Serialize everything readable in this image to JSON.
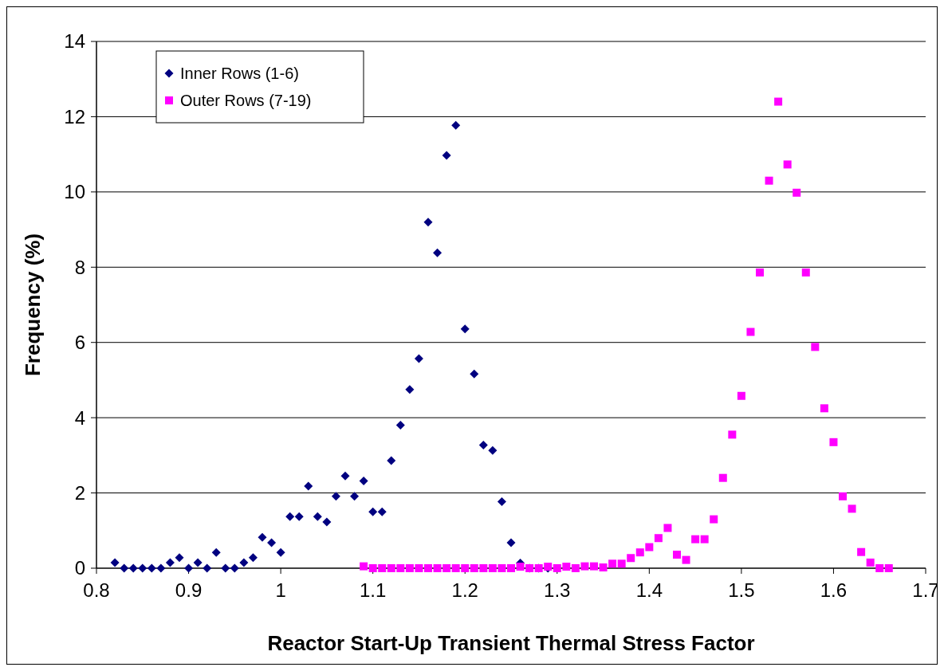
{
  "chart_data": {
    "type": "scatter",
    "xlabel": "Reactor Start-Up Transient Thermal Stress Factor",
    "ylabel": "Frequency (%)",
    "xlim": [
      0.8,
      1.7
    ],
    "xticks": [
      {
        "value": 0.8,
        "label": "0.8"
      },
      {
        "value": 0.9,
        "label": "0.9"
      },
      1,
      {
        "value": 1.1,
        "label": "1.1"
      },
      {
        "value": 1.2,
        "label": "1.2"
      },
      {
        "value": 1.3,
        "label": "1.3"
      },
      {
        "value": 1.4,
        "label": "1.4"
      },
      {
        "value": 1.5,
        "label": "1.5"
      },
      {
        "value": 1.6,
        "label": "1.6"
      },
      {
        "value": 1.7,
        "label": "1.7"
      }
    ],
    "ylim": [
      0,
      14
    ],
    "yticks": [
      0,
      2,
      4,
      6,
      8,
      10,
      12,
      14
    ],
    "grid": "y",
    "legend": "top left",
    "series": [
      {
        "name": "Inner Rows (1-6)",
        "color": "#000080",
        "marker": "diamond",
        "x": [
          0.82,
          0.83,
          0.84,
          0.85,
          0.86,
          0.87,
          0.88,
          0.89,
          0.9,
          0.91,
          0.92,
          0.93,
          0.94,
          0.95,
          0.96,
          0.97,
          0.98,
          0.99,
          1.0,
          1.01,
          1.02,
          1.03,
          1.04,
          1.05,
          1.06,
          1.07,
          1.08,
          1.09,
          1.1,
          1.11,
          1.12,
          1.13,
          1.14,
          1.15,
          1.16,
          1.17,
          1.18,
          1.19,
          1.2,
          1.21,
          1.22,
          1.23,
          1.24,
          1.25,
          1.26,
          1.27,
          1.28,
          1.29
        ],
        "values": [
          0.15,
          0,
          0,
          0,
          0,
          0,
          0.15,
          0.28,
          0,
          0.15,
          0,
          0.42,
          0,
          0,
          0.15,
          0.28,
          0.82,
          0.68,
          0.42,
          1.37,
          1.37,
          2.18,
          1.37,
          1.23,
          1.91,
          2.45,
          1.91,
          2.32,
          1.5,
          1.5,
          2.86,
          3.8,
          4.75,
          5.57,
          9.2,
          8.38,
          10.97,
          11.77,
          6.36,
          5.16,
          3.27,
          3.13,
          1.77,
          0.68,
          0.14,
          0,
          0,
          0
        ]
      },
      {
        "name": "Outer Rows (7-19)",
        "color": "#ff00ff",
        "marker": "square",
        "x": [
          1.09,
          1.1,
          1.11,
          1.12,
          1.13,
          1.14,
          1.15,
          1.16,
          1.17,
          1.18,
          1.19,
          1.2,
          1.21,
          1.22,
          1.23,
          1.24,
          1.25,
          1.26,
          1.27,
          1.28,
          1.29,
          1.3,
          1.31,
          1.32,
          1.33,
          1.34,
          1.35,
          1.36,
          1.37,
          1.38,
          1.39,
          1.4,
          1.41,
          1.42,
          1.43,
          1.44,
          1.45,
          1.46,
          1.47,
          1.48,
          1.49,
          1.5,
          1.51,
          1.52,
          1.53,
          1.54,
          1.55,
          1.56,
          1.57,
          1.58,
          1.59,
          1.6,
          1.61,
          1.62,
          1.63,
          1.64,
          1.65,
          1.66
        ],
        "values": [
          0.05,
          0,
          0,
          0,
          0,
          0,
          0,
          0,
          0,
          0,
          0,
          0,
          0,
          0,
          0,
          0,
          0,
          0.04,
          0,
          0,
          0.04,
          0,
          0.04,
          0,
          0.05,
          0.05,
          0.02,
          0.12,
          0.12,
          0.27,
          0.42,
          0.56,
          0.8,
          1.07,
          0.36,
          0.22,
          0.77,
          0.77,
          1.3,
          2.4,
          3.55,
          4.58,
          6.28,
          7.86,
          10.3,
          12.4,
          10.73,
          9.98,
          7.86,
          5.88,
          4.25,
          3.35,
          1.91,
          1.58,
          0.43,
          0.15,
          0,
          0
        ]
      }
    ]
  }
}
